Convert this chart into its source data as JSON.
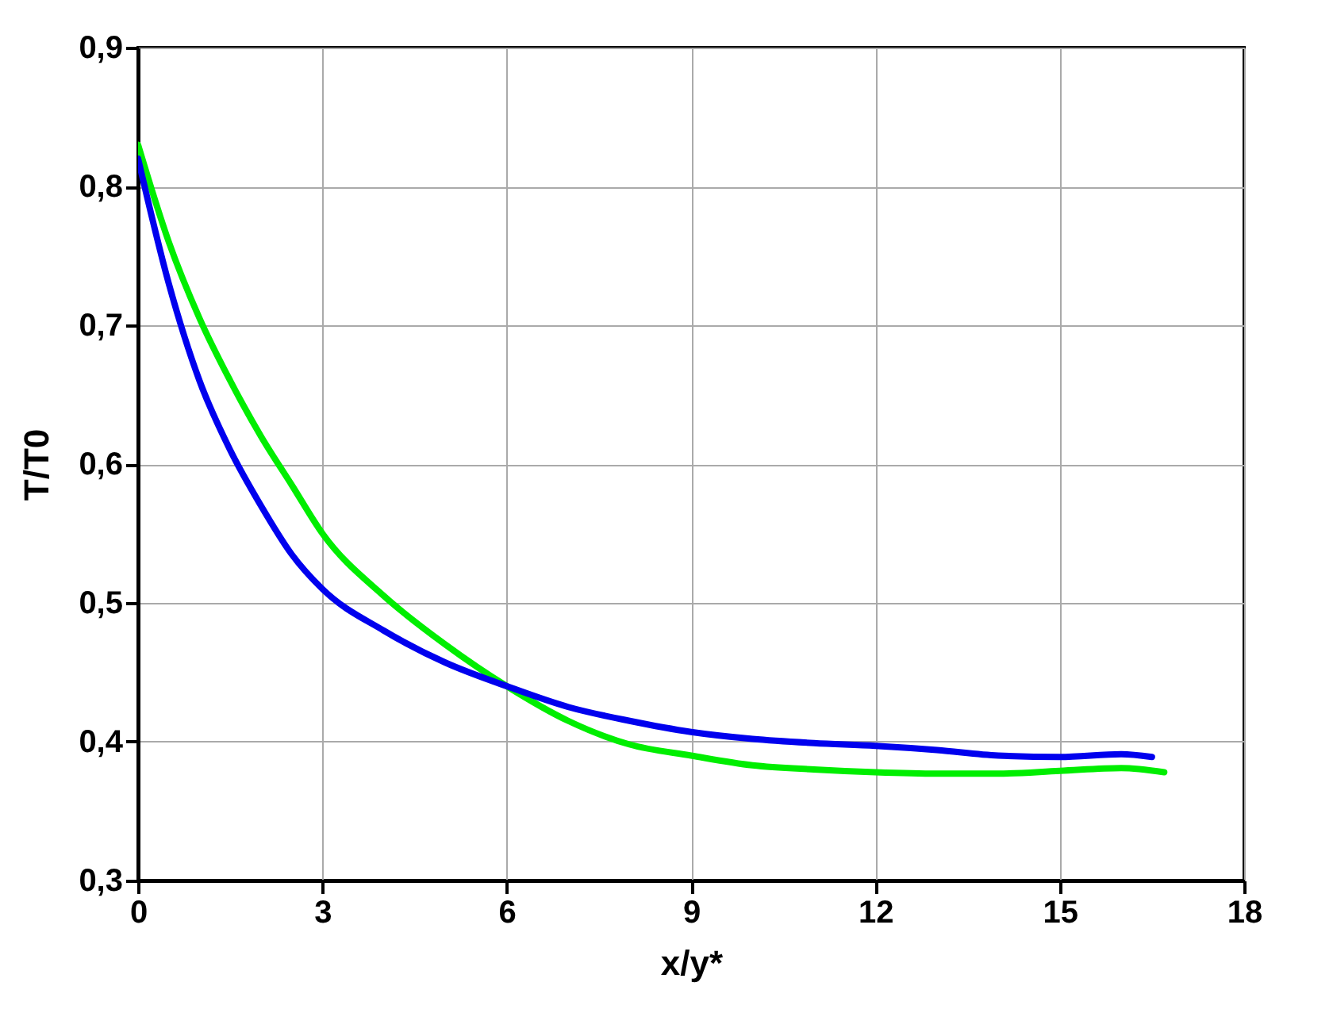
{
  "chart_data": {
    "type": "line",
    "xlabel": "x/y*",
    "ylabel": "T/T0",
    "xlim": [
      0,
      18
    ],
    "xticks": [
      0,
      3,
      6,
      9,
      12,
      15,
      18
    ],
    "ylim": [
      0.3,
      0.9
    ],
    "yticks": [
      {
        "value": 0.3,
        "label": "0,3"
      },
      {
        "value": 0.4,
        "label": "0,4"
      },
      {
        "value": 0.5,
        "label": "0,5"
      },
      {
        "value": 0.6,
        "label": "0,6"
      },
      {
        "value": 0.7,
        "label": "0,7"
      },
      {
        "value": 0.8,
        "label": "0,8"
      },
      {
        "value": 0.9,
        "label": "0,9"
      }
    ],
    "grid": true,
    "marker": "none",
    "line_style": "solid",
    "series": [
      {
        "color": "#00ee00",
        "x": [
          0,
          0.5,
          1,
          1.5,
          2,
          2.5,
          3,
          4,
          5,
          6,
          7,
          8,
          9,
          10,
          11,
          12,
          13,
          14,
          15,
          16,
          16.7
        ],
        "values": [
          0.83,
          0.76,
          0.705,
          0.66,
          0.62,
          0.585,
          0.55,
          0.505,
          0.47,
          0.44,
          0.415,
          0.398,
          0.39,
          0.383,
          0.38,
          0.378,
          0.377,
          0.377,
          0.379,
          0.381,
          0.378
        ]
      },
      {
        "color": "#0000ee",
        "x": [
          0,
          0.5,
          1,
          1.5,
          2,
          2.5,
          3,
          4,
          5,
          6,
          7,
          8,
          9,
          10,
          11,
          12,
          13,
          14,
          15,
          16,
          16.5
        ],
        "values": [
          0.82,
          0.73,
          0.66,
          0.61,
          0.57,
          0.535,
          0.51,
          0.48,
          0.457,
          0.44,
          0.425,
          0.415,
          0.407,
          0.402,
          0.399,
          0.397,
          0.394,
          0.39,
          0.389,
          0.391,
          0.389
        ]
      }
    ]
  }
}
